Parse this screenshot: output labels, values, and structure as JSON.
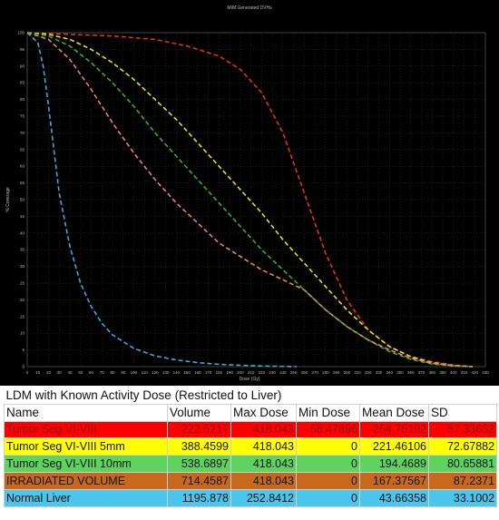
{
  "chart_data": {
    "type": "line",
    "title": "MIM Generated DVHs",
    "xlabel": "Dose (Gy)",
    "ylabel": "% Coverage",
    "xlim": [
      0,
      430
    ],
    "ylim": [
      0,
      100
    ],
    "x_ticks": [
      "0",
      "10",
      "20",
      "30",
      "40",
      "50",
      "60",
      "70",
      "80",
      "90",
      "100",
      "110",
      "120",
      "130",
      "140",
      "150",
      "160",
      "170",
      "180",
      "190",
      "200",
      "210",
      "220",
      "230",
      "240",
      "250",
      "260",
      "270",
      "280",
      "290",
      "300",
      "310",
      "320",
      "330",
      "340",
      "350",
      "360",
      "370",
      "380",
      "390",
      "400",
      "410",
      "420",
      "430"
    ],
    "y_ticks": [
      "0",
      "5",
      "10",
      "15",
      "20",
      "25",
      "30",
      "35",
      "40",
      "45",
      "50",
      "55",
      "60",
      "65",
      "70",
      "75",
      "80",
      "85",
      "90",
      "95",
      "100"
    ],
    "grid": true,
    "series": [
      {
        "color": "#e03020",
        "dash": true,
        "x": [
          0,
          40,
          80,
          120,
          150,
          180,
          200,
          220,
          240,
          260,
          280,
          300,
          320,
          340,
          360,
          380,
          400,
          418
        ],
        "y": [
          100,
          99.5,
          99,
          98,
          96,
          93,
          89,
          82,
          70,
          52,
          34,
          20,
          11,
          6,
          3,
          1.5,
          0.5,
          0
        ]
      },
      {
        "color": "#e6e020",
        "dash": true,
        "x": [
          0,
          20,
          40,
          60,
          80,
          100,
          120,
          140,
          160,
          180,
          200,
          220,
          240,
          260,
          280,
          300,
          320,
          340,
          360,
          380,
          400,
          418
        ],
        "y": [
          100,
          99.5,
          98,
          95,
          91,
          86,
          80,
          74,
          67,
          60,
          53,
          46,
          38,
          31,
          24,
          17,
          11,
          6,
          3,
          1.2,
          0.3,
          0
        ]
      },
      {
        "color": "#30b030",
        "dash": true,
        "x": [
          0,
          20,
          40,
          60,
          80,
          100,
          120,
          140,
          160,
          180,
          200,
          220,
          240,
          260,
          280,
          300,
          320,
          340,
          360,
          380,
          400,
          418
        ],
        "y": [
          100,
          99,
          96,
          91,
          85,
          78,
          70,
          63,
          56,
          49,
          42,
          35,
          29,
          23,
          17,
          12,
          8,
          4.5,
          2.2,
          0.8,
          0.2,
          0
        ]
      },
      {
        "color": "#e08868",
        "dash": true,
        "x": [
          0,
          20,
          40,
          60,
          80,
          100,
          120,
          140,
          160,
          180,
          200,
          220,
          240,
          260,
          280,
          300,
          320,
          340,
          360,
          380,
          400,
          418
        ],
        "y": [
          100,
          98,
          92,
          83,
          73,
          64,
          56,
          49,
          43,
          37,
          33,
          29,
          26,
          23,
          17,
          12,
          8,
          5,
          2.5,
          1,
          0.3,
          0
        ]
      },
      {
        "color": "#40a8d8",
        "dash": true,
        "x": [
          0,
          10,
          15,
          20,
          25,
          30,
          40,
          50,
          60,
          70,
          80,
          100,
          120,
          140,
          160,
          180,
          200,
          220,
          252.8
        ],
        "y": [
          100,
          97,
          90,
          78,
          65,
          52,
          36,
          25,
          18,
          13,
          9.5,
          5.5,
          3.2,
          2,
          1.2,
          0.7,
          0.4,
          0.2,
          0
        ]
      }
    ]
  },
  "table": {
    "title": "LDM with Known Activity Dose (Restricted to Liver)",
    "headers": [
      "Name",
      "Volume",
      "Max Dose",
      "Min Dose",
      "Mean Dose",
      "SD"
    ],
    "rows": [
      {
        "bg": "#ff0000",
        "fg": "#8b1a1a",
        "cells": [
          "Tumor  Seg VI-VIII",
          "222.5217",
          "418.043",
          "58.47896",
          "254.75192",
          "57.33632"
        ]
      },
      {
        "bg": "#ffff00",
        "fg": "#111111",
        "cells": [
          "Tumor  Seg VI-VIII 5mm",
          "388.4599",
          "418.043",
          "0",
          "221.46106",
          "72.67882"
        ]
      },
      {
        "bg": "#5fd35f",
        "fg": "#111111",
        "cells": [
          "Tumor  Seg VI-VIII 10mm",
          "538.6897",
          "418.043",
          "0",
          "194.4689",
          "80.65881"
        ]
      },
      {
        "bg": "#c8681c",
        "fg": "#111111",
        "cells": [
          "IRRADIATED VOLUME",
          "714.4587",
          "418.043",
          "0",
          "167.37567",
          "87.2371"
        ]
      },
      {
        "bg": "#4ac6ec",
        "fg": "#111111",
        "cells": [
          "Normal Liver",
          "1195.878",
          "252.8412",
          "0",
          "43.66358",
          "33.1002"
        ]
      }
    ]
  }
}
